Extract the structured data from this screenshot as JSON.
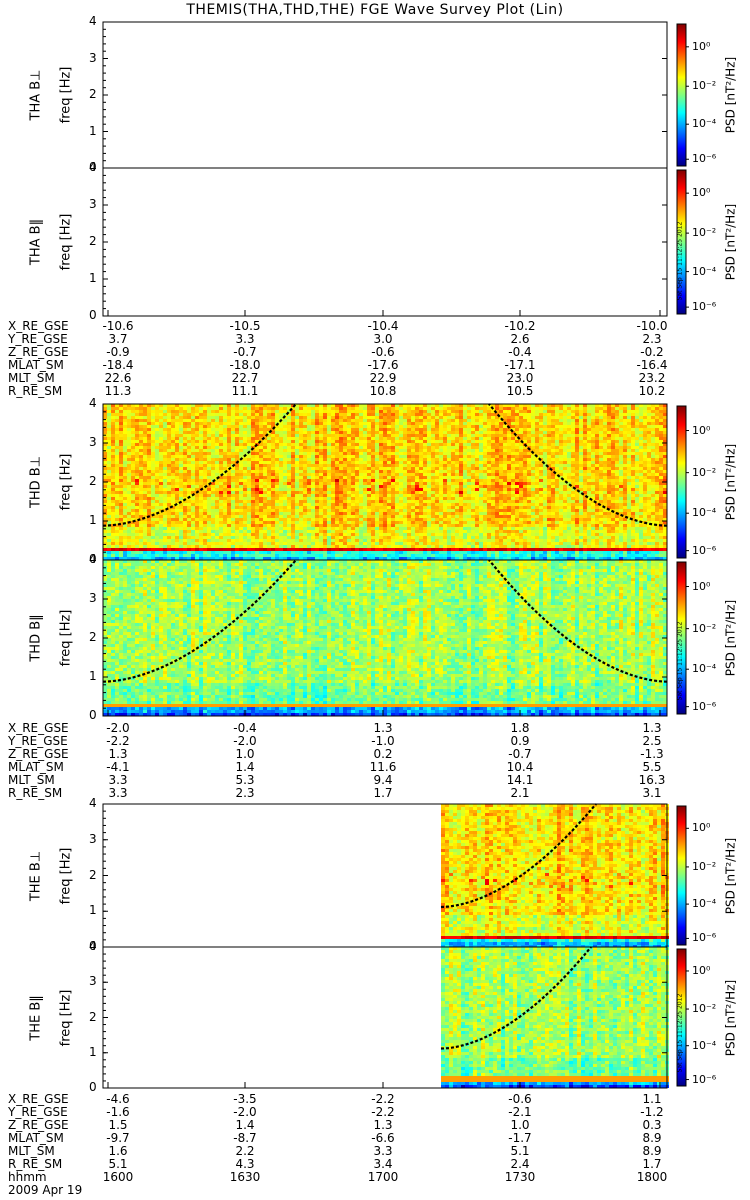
{
  "title": "THEMIS(THA,THD,THE) FGE Wave Survey Plot (Lin)",
  "colors": {
    "jet": [
      "#000080",
      "#0000ff",
      "#0080ff",
      "#00ffff",
      "#80ff80",
      "#ffff00",
      "#ff8000",
      "#ff0000",
      "#800000"
    ]
  },
  "colorbar": {
    "title": "PSD [nT²/Hz]",
    "tick_labels": [
      "10⁰",
      "10⁻²",
      "10⁻⁴",
      "10⁻⁶"
    ]
  },
  "panels": [
    {
      "probe": "THA",
      "label": "THA B⊥",
      "ylabel": "freq [Hz]",
      "yticks": [
        "0",
        "1",
        "2",
        "3",
        "4"
      ],
      "data": "empty"
    },
    {
      "probe": "THA",
      "label": "THA B‖",
      "ylabel": "freq [Hz]",
      "yticks": [
        "0",
        "1",
        "2",
        "3",
        "4"
      ],
      "data": "empty",
      "stamp": "Sat Sep 15 11:12:25 2012"
    },
    {
      "probe": "THD",
      "label": "THD B⊥",
      "ylabel": "freq [Hz]",
      "yticks": [
        "0",
        "1",
        "2",
        "3",
        "4"
      ],
      "data": "spectrogram"
    },
    {
      "probe": "THD",
      "label": "THD B‖",
      "ylabel": "freq [Hz]",
      "yticks": [
        "0",
        "1",
        "2",
        "3",
        "4"
      ],
      "data": "spectrogram",
      "stamp": "Sat Sep 15 11:12:25 2012"
    },
    {
      "probe": "THE",
      "label": "THE B⊥",
      "ylabel": "freq [Hz]",
      "yticks": [
        "0",
        "1",
        "2",
        "3",
        "4"
      ],
      "data": "spectrogram_partial"
    },
    {
      "probe": "THE",
      "label": "THE B‖",
      "ylabel": "freq [Hz]",
      "yticks": [
        "0",
        "1",
        "2",
        "3",
        "4"
      ],
      "data": "spectrogram_partial",
      "stamp": "Sat Sep 15 11:12:25 2012"
    }
  ],
  "ephemeris": [
    {
      "rows": [
        {
          "name": "X_RE_GSE",
          "values": [
            "-10.6",
            "-10.5",
            "-10.4",
            "-10.2",
            "-10.0"
          ]
        },
        {
          "name": "Y_RE_GSE",
          "values": [
            "3.7",
            "3.3",
            "3.0",
            "2.6",
            "2.3"
          ]
        },
        {
          "name": "Z_RE_GSE",
          "values": [
            "-0.9",
            "-0.7",
            "-0.6",
            "-0.4",
            "-0.2"
          ]
        },
        {
          "name": "MLAT_SM",
          "values": [
            "-18.4",
            "-18.0",
            "-17.6",
            "-17.1",
            "-16.4"
          ]
        },
        {
          "name": "MLT_SM",
          "values": [
            "22.6",
            "22.7",
            "22.9",
            "23.0",
            "23.2"
          ]
        },
        {
          "name": "R_RE_SM",
          "values": [
            "11.3",
            "11.1",
            "10.8",
            "10.5",
            "10.2"
          ]
        }
      ]
    },
    {
      "rows": [
        {
          "name": "X_RE_GSE",
          "values": [
            "-2.0",
            "-0.4",
            "1.3",
            "1.8",
            "1.3"
          ]
        },
        {
          "name": "Y_RE_GSE",
          "values": [
            "-2.2",
            "-2.0",
            "-1.0",
            "0.9",
            "2.5"
          ]
        },
        {
          "name": "Z_RE_GSE",
          "values": [
            "1.3",
            "1.0",
            "0.2",
            "-0.7",
            "-1.3"
          ]
        },
        {
          "name": "MLAT_SM",
          "values": [
            "-4.1",
            "1.4",
            "11.6",
            "10.4",
            "5.5"
          ]
        },
        {
          "name": "MLT_SM",
          "values": [
            "3.3",
            "5.3",
            "9.4",
            "14.1",
            "16.3"
          ]
        },
        {
          "name": "R_RE_SM",
          "values": [
            "3.3",
            "2.3",
            "1.7",
            "2.1",
            "3.1"
          ]
        }
      ]
    },
    {
      "rows": [
        {
          "name": "X_RE_GSE",
          "values": [
            "-4.6",
            "-3.5",
            "-2.2",
            "-0.6",
            "1.1"
          ]
        },
        {
          "name": "Y_RE_GSE",
          "values": [
            "-1.6",
            "-2.0",
            "-2.2",
            "-2.1",
            "-1.2"
          ]
        },
        {
          "name": "Z_RE_GSE",
          "values": [
            "1.5",
            "1.4",
            "1.3",
            "1.0",
            "0.3"
          ]
        },
        {
          "name": "MLAT_SM",
          "values": [
            "-9.7",
            "-8.7",
            "-6.6",
            "-1.7",
            "8.9"
          ]
        },
        {
          "name": "MLT_SM",
          "values": [
            "1.6",
            "2.2",
            "3.3",
            "5.1",
            "8.9"
          ]
        },
        {
          "name": "R_RE_SM",
          "values": [
            "5.1",
            "4.3",
            "3.4",
            "2.4",
            "1.7"
          ]
        },
        {
          "name": "hhmm",
          "values": [
            "1600",
            "1630",
            "1700",
            "1730",
            "1800"
          ]
        }
      ]
    }
  ],
  "date_label": "2009 Apr 19",
  "chart_data": {
    "type": "heatmap",
    "title": "THEMIS(THA,THD,THE) FGE Wave Survey Plot (Lin)",
    "x": [
      "1600",
      "1630",
      "1700",
      "1730",
      "1800"
    ],
    "xlabel": "hhmm",
    "ylabel": "freq [Hz]",
    "ylim": [
      0,
      4
    ],
    "zlabel": "PSD [nT²/Hz]",
    "zlim": [
      "1e-6",
      "1e1"
    ],
    "colorscale": "jet, log",
    "series": [
      {
        "name": "THA B⊥",
        "data": "no data"
      },
      {
        "name": "THA B‖",
        "data": "no data"
      },
      {
        "name": "THD B⊥",
        "coverage": "1600-1800",
        "typical_log10_psd": -1.5,
        "strong_band_freq_hz": 0.3
      },
      {
        "name": "THD B‖",
        "coverage": "1600-1800",
        "typical_log10_psd": -2.5
      },
      {
        "name": "THE B⊥",
        "coverage": "1715-1800",
        "typical_log10_psd": -1.5,
        "strong_band_freq_hz": 0.3
      },
      {
        "name": "THE B‖",
        "coverage": "1715-1800",
        "typical_log10_psd": -2.5
      }
    ]
  }
}
